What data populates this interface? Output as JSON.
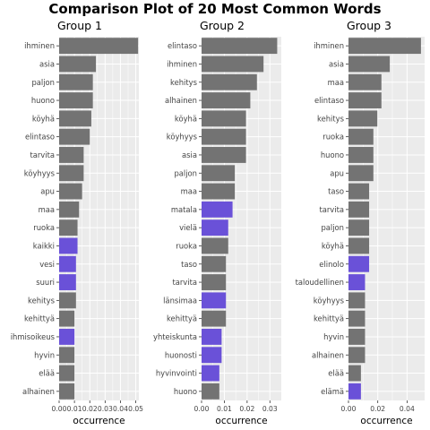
{
  "colors": {
    "panel_background": "#ebebeb",
    "gridline": "#ffffff",
    "bar_default": "#737373",
    "bar_highlight": "#6a51d8"
  },
  "chart_data": {
    "type": "bar",
    "orientation": "horizontal",
    "title": "Comparison Plot of 20 Most Common Words",
    "grid": true,
    "panels": [
      {
        "name": "Group 1",
        "xlabel": "occurrence",
        "xlim": [
          0,
          0.052
        ],
        "xticks": [
          0,
          0.01,
          0.02,
          0.03,
          0.04,
          0.05
        ],
        "xtick_labels": [
          "0.00",
          "0.01",
          "0.02",
          "0.03",
          "0.04",
          "0.05"
        ],
        "categories": [
          "ihminen",
          "asia",
          "paljon",
          "huono",
          "köyhä",
          "elintaso",
          "tarvita",
          "köyhyys",
          "apu",
          "maa",
          "ruoka",
          "kaikki",
          "vesi",
          "suuri",
          "kehitys",
          "kehittyä",
          "ihmisoikeus",
          "hyvin",
          "elää",
          "alhainen"
        ],
        "values": [
          0.0515,
          0.024,
          0.022,
          0.022,
          0.021,
          0.02,
          0.016,
          0.016,
          0.015,
          0.013,
          0.012,
          0.012,
          0.011,
          0.011,
          0.011,
          0.01,
          0.01,
          0.01,
          0.01,
          0.01
        ],
        "highlighted": [
          false,
          false,
          false,
          false,
          false,
          false,
          false,
          false,
          false,
          false,
          false,
          true,
          true,
          true,
          false,
          false,
          true,
          false,
          false,
          false
        ]
      },
      {
        "name": "Group 2",
        "xlabel": "occurrence",
        "xlim": [
          0,
          0.035
        ],
        "xticks": [
          0,
          0.01,
          0.02,
          0.03
        ],
        "xtick_labels": [
          "0.00",
          "0.01",
          "0.02",
          "0.03"
        ],
        "categories": [
          "elintaso",
          "ihminen",
          "kehitys",
          "alhainen",
          "köyhä",
          "köyhyys",
          "asia",
          "paljon",
          "maa",
          "matala",
          "vielä",
          "ruoka",
          "taso",
          "tarvita",
          "länsimaa",
          "kehittyä",
          "yhteiskunta",
          "huonosti",
          "hyvinvointi",
          "huono"
        ],
        "values": [
          0.0332,
          0.0272,
          0.0243,
          0.0214,
          0.0195,
          0.0195,
          0.0195,
          0.0146,
          0.0146,
          0.0136,
          0.0117,
          0.0117,
          0.0107,
          0.0107,
          0.0107,
          0.0107,
          0.0088,
          0.0088,
          0.0078,
          0.0078
        ],
        "highlighted": [
          false,
          false,
          false,
          false,
          false,
          false,
          false,
          false,
          false,
          true,
          true,
          false,
          false,
          false,
          true,
          false,
          true,
          true,
          true,
          false
        ]
      },
      {
        "name": "Group 3",
        "xlabel": "occurrence",
        "xlim": [
          0,
          0.052
        ],
        "xticks": [
          0,
          0.02,
          0.04
        ],
        "xtick_labels": [
          "0.00",
          "0.02",
          "0.04"
        ],
        "categories": [
          "ihminen",
          "asia",
          "maa",
          "elintaso",
          "kehitys",
          "ruoka",
          "huono",
          "apu",
          "taso",
          "tarvita",
          "paljon",
          "köyhä",
          "elinolo",
          "taloudellinen",
          "köyhyys",
          "kehittyä",
          "hyvin",
          "alhainen",
          "elää",
          "elämä"
        ],
        "values": [
          0.0495,
          0.0282,
          0.0225,
          0.0225,
          0.0197,
          0.017,
          0.017,
          0.017,
          0.0141,
          0.0141,
          0.0141,
          0.0141,
          0.0141,
          0.0113,
          0.0113,
          0.0113,
          0.0113,
          0.0113,
          0.0085,
          0.0085
        ],
        "highlighted": [
          false,
          false,
          false,
          false,
          false,
          false,
          false,
          false,
          false,
          false,
          false,
          false,
          true,
          true,
          false,
          false,
          false,
          false,
          false,
          true
        ]
      }
    ]
  }
}
